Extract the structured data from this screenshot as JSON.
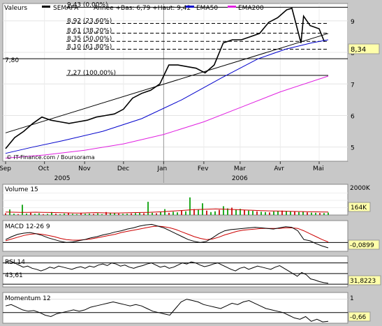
{
  "header": {
    "label": "Valeurs",
    "ticker": "SEMAPA",
    "range_text": "Année +Bas: 6,79 +Haut: 9,42",
    "legend": [
      {
        "name": "EMA50",
        "color": "#0000cc"
      },
      {
        "name": "EMA200",
        "color": "#e020e0"
      }
    ]
  },
  "chart_data": [
    {
      "type": "line",
      "id": "price",
      "x_start": "2005-09-01",
      "x_end": "2006-05-08",
      "ylim": [
        4.55,
        9.55
      ],
      "y_ticks": [
        "5",
        "6",
        "7",
        "8",
        "9"
      ],
      "x_ticks": [
        {
          "date": "2005-09-01",
          "label": "Sep"
        },
        {
          "date": "2005-10-01",
          "label": "Oct"
        },
        {
          "date": "2005-11-01",
          "label": "Nov"
        },
        {
          "date": "2005-12-01",
          "label": "Dec"
        },
        {
          "date": "2006-01-01",
          "label": "Jan"
        },
        {
          "date": "2006-02-01",
          "label": "Fev"
        },
        {
          "date": "2006-03-01",
          "label": "Mar"
        },
        {
          "date": "2006-04-01",
          "label": "Avr"
        },
        {
          "date": "2006-05-01",
          "label": "Mai"
        }
      ],
      "year_labels": [
        {
          "date": "2005-10-15",
          "label": "2005"
        },
        {
          "date": "2006-03-01",
          "label": "2006"
        }
      ],
      "year_separator_date": "2006-01-01",
      "last_price": "8,34",
      "last_value": 8.34,
      "level_label": "7,80",
      "level_value": 7.8,
      "credit": "© IT-Finance.com / Boursorama",
      "fib_levels": [
        {
          "label": "9,43 (0,00%)",
          "value": 9.43
        },
        {
          "label": "8,92 (23,60%)",
          "value": 8.92
        },
        {
          "label": "8,61 (38,20%)",
          "value": 8.61
        },
        {
          "label": "8,35 (50,00%)",
          "value": 8.35
        },
        {
          "label": "8,10 (61,80%)",
          "value": 8.1
        },
        {
          "label": "7,27 (100,00%)",
          "value": 7.27
        }
      ],
      "trendline": {
        "start": [
          "2005-09-01",
          5.45
        ],
        "end": [
          "2006-05-08",
          8.6
        ]
      },
      "series": [
        {
          "name": "SEMAPA",
          "color": "#000000",
          "points": [
            [
              "2005-09-01",
              4.95
            ],
            [
              "2005-09-08",
              5.3
            ],
            [
              "2005-09-15",
              5.5
            ],
            [
              "2005-09-22",
              5.75
            ],
            [
              "2005-09-29",
              5.95
            ],
            [
              "2005-10-06",
              5.85
            ],
            [
              "2005-10-13",
              5.8
            ],
            [
              "2005-10-20",
              5.75
            ],
            [
              "2005-10-27",
              5.8
            ],
            [
              "2005-11-03",
              5.85
            ],
            [
              "2005-11-10",
              5.95
            ],
            [
              "2005-11-17",
              6.0
            ],
            [
              "2005-11-24",
              6.05
            ],
            [
              "2005-12-01",
              6.2
            ],
            [
              "2005-12-08",
              6.55
            ],
            [
              "2005-12-15",
              6.7
            ],
            [
              "2005-12-22",
              6.8
            ],
            [
              "2005-12-29",
              7.0
            ],
            [
              "2006-01-05",
              7.6
            ],
            [
              "2006-01-12",
              7.6
            ],
            [
              "2006-01-19",
              7.55
            ],
            [
              "2006-01-26",
              7.5
            ],
            [
              "2006-02-02",
              7.35
            ],
            [
              "2006-02-09",
              7.6
            ],
            [
              "2006-02-16",
              8.3
            ],
            [
              "2006-02-23",
              8.4
            ],
            [
              "2006-03-02",
              8.4
            ],
            [
              "2006-03-09",
              8.5
            ],
            [
              "2006-03-16",
              8.6
            ],
            [
              "2006-03-23",
              8.95
            ],
            [
              "2006-03-30",
              9.1
            ],
            [
              "2006-04-06",
              9.35
            ],
            [
              "2006-04-10",
              9.4
            ],
            [
              "2006-04-17",
              8.3
            ],
            [
              "2006-04-19",
              9.15
            ],
            [
              "2006-04-24",
              8.85
            ],
            [
              "2006-05-01",
              8.75
            ],
            [
              "2006-05-05",
              8.34
            ]
          ]
        },
        {
          "name": "EMA50",
          "color": "#0000cc",
          "points": [
            [
              "2005-09-01",
              4.8
            ],
            [
              "2005-09-22",
              5.0
            ],
            [
              "2005-10-15",
              5.2
            ],
            [
              "2005-11-15",
              5.5
            ],
            [
              "2005-12-15",
              5.9
            ],
            [
              "2006-01-15",
              6.5
            ],
            [
              "2006-02-15",
              7.2
            ],
            [
              "2006-03-15",
              7.8
            ],
            [
              "2006-04-05",
              8.1
            ],
            [
              "2006-04-25",
              8.3
            ],
            [
              "2006-05-08",
              8.4
            ]
          ]
        },
        {
          "name": "EMA200",
          "color": "#e020e0",
          "points": [
            [
              "2005-09-01",
              4.65
            ],
            [
              "2005-10-01",
              4.75
            ],
            [
              "2005-11-01",
              4.9
            ],
            [
              "2005-12-01",
              5.1
            ],
            [
              "2006-01-01",
              5.4
            ],
            [
              "2006-02-01",
              5.8
            ],
            [
              "2006-03-01",
              6.25
            ],
            [
              "2006-04-01",
              6.75
            ],
            [
              "2006-05-08",
              7.25
            ]
          ]
        }
      ]
    },
    {
      "type": "bar",
      "id": "volume",
      "title": "Volume 15",
      "ylim": [
        0,
        2000
      ],
      "top_label": "2000K",
      "last_label": "164K",
      "last_value": 164,
      "values": [
        120,
        380,
        90,
        60,
        700,
        100,
        150,
        80,
        120,
        60,
        80,
        200,
        90,
        60,
        100,
        120,
        80,
        60,
        150,
        90,
        100,
        80,
        120,
        60,
        200,
        150,
        120,
        100,
        80,
        90,
        110,
        130,
        150,
        120,
        900,
        150,
        120,
        200,
        400,
        150,
        220,
        180,
        300,
        250,
        1200,
        400,
        350,
        800,
        300,
        200,
        250,
        350,
        600,
        450,
        500,
        380,
        420,
        350,
        300,
        280,
        250,
        220,
        200,
        180,
        240,
        260,
        300,
        280,
        250,
        220,
        200,
        230,
        180,
        160,
        150,
        140,
        130,
        164
      ],
      "ma": [
        200,
        190,
        180,
        180,
        190,
        180,
        170,
        160,
        150,
        140,
        130,
        150,
        160,
        150,
        140,
        140,
        150,
        160,
        170,
        180,
        200,
        230,
        260,
        290,
        330,
        360,
        380,
        400,
        420,
        400,
        380,
        360,
        340,
        320,
        300,
        280,
        270,
        260,
        250,
        240,
        230,
        220,
        210,
        200
      ]
    },
    {
      "type": "line",
      "id": "macd",
      "title": "MACD 12-26 9",
      "ylim": [
        -0.15,
        0.35
      ],
      "last_label": "-0,0899",
      "last_value": -0.0899,
      "zero": 0,
      "macd": [
        0.05,
        0.1,
        0.14,
        0.16,
        0.17,
        0.15,
        0.12,
        0.08,
        0.05,
        0.02,
        0.0,
        0.01,
        0.03,
        0.05,
        0.08,
        0.1,
        0.13,
        0.15,
        0.18,
        0.2,
        0.23,
        0.25,
        0.28,
        0.3,
        0.31,
        0.28,
        0.25,
        0.2,
        0.15,
        0.1,
        0.05,
        0.02,
        0.0,
        0.02,
        0.08,
        0.15,
        0.2,
        0.22,
        0.23,
        0.24,
        0.25,
        0.26,
        0.25,
        0.24,
        0.23,
        0.25,
        0.27,
        0.26,
        0.2,
        0.05,
        0.03,
        -0.02,
        -0.06,
        -0.0899
      ],
      "signal": [
        0.03,
        0.06,
        0.09,
        0.12,
        0.14,
        0.15,
        0.14,
        0.12,
        0.1,
        0.07,
        0.05,
        0.04,
        0.04,
        0.05,
        0.06,
        0.08,
        0.1,
        0.12,
        0.14,
        0.17,
        0.19,
        0.21,
        0.23,
        0.25,
        0.27,
        0.28,
        0.27,
        0.25,
        0.22,
        0.18,
        0.14,
        0.1,
        0.07,
        0.05,
        0.06,
        0.09,
        0.13,
        0.16,
        0.19,
        0.21,
        0.22,
        0.23,
        0.24,
        0.24,
        0.24,
        0.24,
        0.25,
        0.25,
        0.24,
        0.2,
        0.15,
        0.1,
        0.05,
        0.01
      ]
    },
    {
      "type": "line",
      "id": "rsi",
      "title": "RSI 14",
      "ylim": [
        25,
        80
      ],
      "left_label": "43,61",
      "left_value": 43.61,
      "last_label": "31,8223",
      "last_value": 31.8223,
      "levels": [
        70,
        50,
        30
      ],
      "values": [
        72,
        74,
        70,
        66,
        62,
        64,
        60,
        58,
        55,
        58,
        62,
        60,
        64,
        62,
        60,
        58,
        61,
        63,
        60,
        64,
        62,
        66,
        68,
        65,
        70,
        68,
        64,
        66,
        62,
        60,
        63,
        65,
        68,
        70,
        66,
        62,
        64,
        60,
        62,
        66,
        70,
        68,
        72,
        70,
        66,
        63,
        65,
        68,
        70,
        66,
        62,
        58,
        55,
        60,
        62,
        58,
        61,
        64,
        62,
        60,
        58,
        62,
        65,
        60,
        55,
        50,
        45,
        52,
        48,
        40,
        38,
        35,
        33,
        31.82
      ]
    },
    {
      "type": "line",
      "id": "momentum",
      "title": "Momentum 12",
      "ylim": [
        -0.8,
        1.4
      ],
      "top_label": "1",
      "last_label": "-0,66",
      "last_value": -0.66,
      "zero": 0,
      "values": [
        0.5,
        0.6,
        0.4,
        0.2,
        0.1,
        0.15,
        0.0,
        -0.2,
        -0.3,
        -0.1,
        0.0,
        0.1,
        0.2,
        0.1,
        0.2,
        0.4,
        0.5,
        0.6,
        0.7,
        0.8,
        0.7,
        0.6,
        0.5,
        0.6,
        0.5,
        0.3,
        0.1,
        0.0,
        -0.1,
        -0.2,
        0.3,
        0.8,
        1.0,
        0.9,
        0.8,
        0.6,
        0.5,
        0.4,
        0.3,
        0.5,
        0.7,
        0.6,
        0.8,
        0.9,
        0.7,
        0.5,
        0.3,
        0.2,
        0.1,
        0.0,
        -0.2,
        -0.4,
        -0.5,
        -0.3,
        -0.66,
        -0.5,
        -0.7,
        -0.66
      ]
    }
  ]
}
